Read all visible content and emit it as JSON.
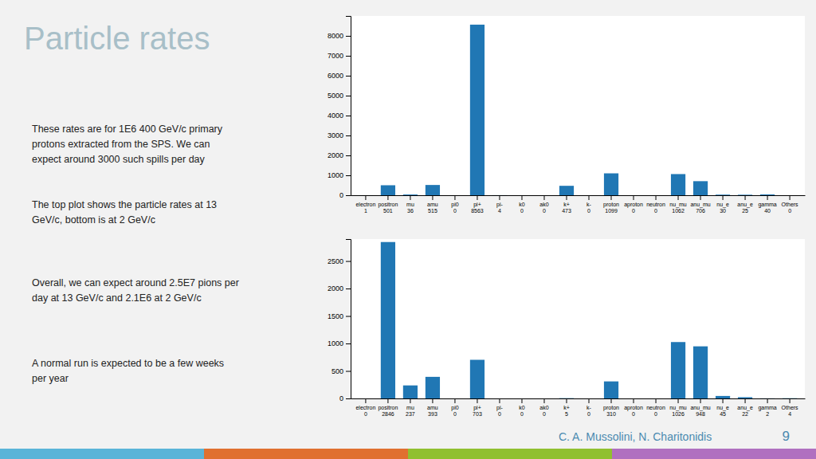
{
  "chart_data": [
    {
      "type": "bar",
      "title": "Particle rates",
      "annotations": [
        "These rates are for 1E6 400 GeV/c primary\nprotons extracted from the SPS. We can\nexpect around 3000 such spills per day",
        "The top plot shows the particle rates at 13\nGeV/c, bottom is at 2 GeV/c",
        "Overall, we can expect around 2.5E7 pions per\nday at 13 GeV/c  and 2.1E6 at 2 GeV/c",
        "A normal run is expected to be a few weeks\nper year",
        "C. A. Mussolini, N. Charitonidis",
        "9"
      ],
      "categories": [
        "electron\n1",
        "positron\n501",
        "mu\n36",
        "amu\n515",
        "pi0\n0",
        "pi+\n8563",
        "pi-\n4",
        "k0\n0",
        "ak0\n0",
        "k+\n473",
        "k-\n0",
        "proton\n1099",
        "aproton\n0",
        "neutron\n0",
        "nu_mu\n1062",
        "anu_mu\n706",
        "nu_e\n30",
        "anu_e\n25",
        "gamma\n40",
        "Others\n0"
      ],
      "values": [
        1,
        501,
        36,
        515,
        0,
        8563,
        4,
        0,
        0,
        473,
        0,
        1099,
        0,
        0,
        1062,
        706,
        30,
        25,
        40,
        0
      ],
      "color": "#2077b4",
      "ylim": [
        0,
        9000
      ],
      "yticks": [
        0,
        1000,
        2000,
        3000,
        4000,
        5000,
        6000,
        7000,
        8000
      ],
      "grid": false
    },
    {
      "type": "bar",
      "categories": [
        "electron\n0",
        "positron\n2846",
        "mu\n237",
        "amu\n393",
        "pi0\n0",
        "pi+\n703",
        "pi-\n0",
        "k0\n0",
        "ak0\n0",
        "k+\n5",
        "k-\n0",
        "proton\n310",
        "aproton\n0",
        "neutron\n0",
        "nu_mu\n1026",
        "anu_mu\n948",
        "nu_e\n45",
        "anu_e\n22",
        "gamma\n2",
        "Others\n4"
      ],
      "values": [
        0,
        2846,
        237,
        393,
        0,
        703,
        0,
        0,
        0,
        5,
        0,
        310,
        0,
        0,
        1026,
        948,
        45,
        22,
        2,
        4
      ],
      "color": "#2077b4",
      "ylim": [
        0,
        2900
      ],
      "yticks": [
        0,
        500,
        1000,
        1500,
        2000,
        2500
      ],
      "grid": false
    }
  ]
}
